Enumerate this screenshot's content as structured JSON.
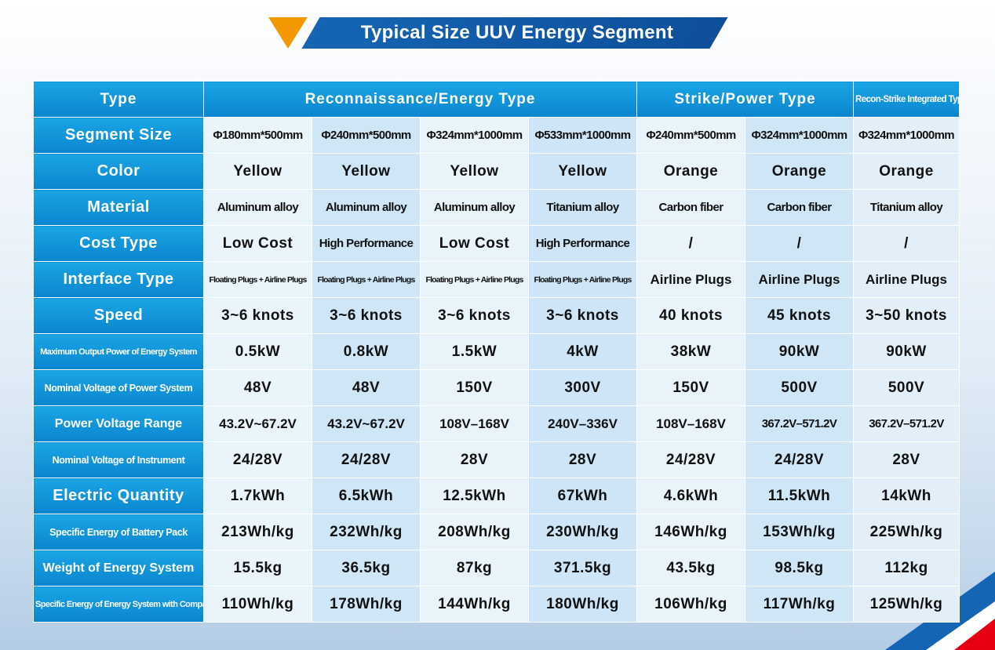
{
  "title": "Typical Size UUV Energy Segment",
  "colors": {
    "accent_orange": "#f39800",
    "header_blue": "#0e4f9a",
    "cell_blue": "#0a85cf"
  },
  "groups": [
    "Reconnaissance/Energy Type",
    "Strike/Power Type",
    "Recon-Strike Integrated Type"
  ],
  "rows": [
    {
      "label": "Type",
      "values": []
    },
    {
      "label": "Segment Size",
      "values": [
        "Φ180mm*500mm",
        "Φ240mm*500mm",
        "Φ324mm*1000mm",
        "Φ533mm*1000mm",
        "Φ240mm*500mm",
        "Φ324mm*1000mm",
        "Φ324mm*1000mm"
      ]
    },
    {
      "label": "Color",
      "values": [
        "Yellow",
        "Yellow",
        "Yellow",
        "Yellow",
        "Orange",
        "Orange",
        "Orange"
      ]
    },
    {
      "label": "Material",
      "values": [
        "Aluminum alloy",
        "Aluminum alloy",
        "Aluminum alloy",
        "Titanium alloy",
        "Carbon fiber",
        "Carbon fiber",
        "Titanium alloy"
      ]
    },
    {
      "label": "Cost Type",
      "values": [
        "Low Cost",
        "High Performance",
        "Low Cost",
        "High Performance",
        "/",
        "/",
        "/"
      ]
    },
    {
      "label": "Interface Type",
      "values": [
        "Floating Plugs + Airline Plugs",
        "Floating Plugs + Airline Plugs",
        "Floating Plugs + Airline Plugs",
        "Floating Plugs + Airline Plugs",
        "Airline Plugs",
        "Airline Plugs",
        "Airline Plugs"
      ]
    },
    {
      "label": "Speed",
      "values": [
        "3~6 knots",
        "3~6 knots",
        "3~6 knots",
        "3~6 knots",
        "40 knots",
        "45 knots",
        "3~50 knots"
      ]
    },
    {
      "label": "Maximum Output Power of Energy System",
      "values": [
        "0.5kW",
        "0.8kW",
        "1.5kW",
        "4kW",
        "38kW",
        "90kW",
        "90kW"
      ]
    },
    {
      "label": "Nominal Voltage of Power System",
      "values": [
        "48V",
        "48V",
        "150V",
        "300V",
        "150V",
        "500V",
        "500V"
      ]
    },
    {
      "label": "Power Voltage Range",
      "values": [
        "43.2V~67.2V",
        "43.2V~67.2V",
        "108V–168V",
        "240V–336V",
        "108V–168V",
        "367.2V–571.2V",
        "367.2V–571.2V"
      ]
    },
    {
      "label": "Nominal Voltage of Instrument",
      "values": [
        "24/28V",
        "24/28V",
        "28V",
        "28V",
        "24/28V",
        "24/28V",
        "28V"
      ]
    },
    {
      "label": "Electric Quantity",
      "values": [
        "1.7kWh",
        "6.5kWh",
        "12.5kWh",
        "67kWh",
        "4.6kWh",
        "11.5kWh",
        "14kWh"
      ]
    },
    {
      "label": "Specific Energy of Battery Pack",
      "values": [
        "213Wh/kg",
        "232Wh/kg",
        "208Wh/kg",
        "230Wh/kg",
        "146Wh/kg",
        "153Wh/kg",
        "225Wh/kg"
      ]
    },
    {
      "label": "Weight of Energy System",
      "values": [
        "15.5kg",
        "36.5kg",
        "87kg",
        "371.5kg",
        "43.5kg",
        "98.5kg",
        "112kg"
      ]
    },
    {
      "label": "Specific Energy of Energy System with Compartment",
      "values": [
        "110Wh/kg",
        "178Wh/kg",
        "144Wh/kg",
        "180Wh/kg",
        "106Wh/kg",
        "117Wh/kg",
        "125Wh/kg"
      ]
    }
  ]
}
